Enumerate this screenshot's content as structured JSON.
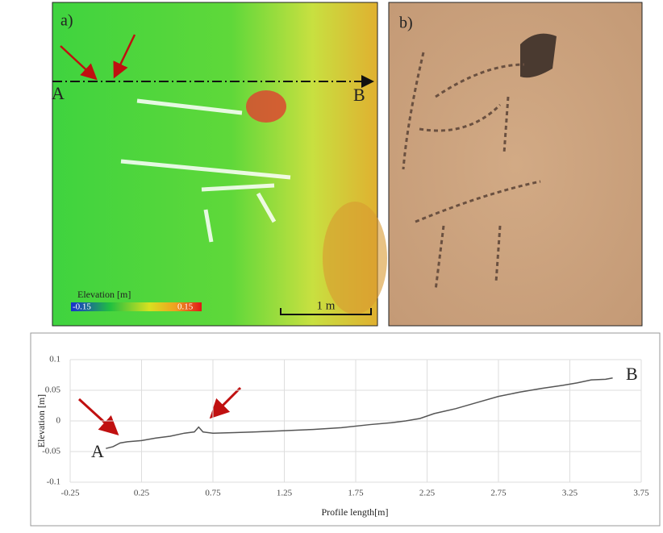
{
  "panel_a": {
    "label": "a)",
    "point_a": "A",
    "point_b": "B",
    "legend_title": "Elevation [m]",
    "legend_min": "-0.15",
    "legend_max": "0.15",
    "scale": "1 m"
  },
  "panel_b": {
    "label": "b)"
  },
  "chart_data": {
    "type": "line",
    "xlabel": "Profile length[m]",
    "ylabel": "Elevation [m]",
    "x": [
      0,
      0.05,
      0.1,
      0.15,
      0.25,
      0.35,
      0.45,
      0.55,
      0.62,
      0.65,
      0.68,
      0.75,
      0.9,
      1.05,
      1.25,
      1.45,
      1.65,
      1.85,
      2.0,
      2.1,
      2.2,
      2.3,
      2.45,
      2.6,
      2.75,
      2.9,
      3.05,
      3.2,
      3.3,
      3.4,
      3.5,
      3.55
    ],
    "series": [
      {
        "color": "#555555",
        "values": [
          -0.045,
          -0.042,
          -0.036,
          -0.034,
          -0.032,
          -0.028,
          -0.025,
          -0.02,
          -0.018,
          -0.01,
          -0.018,
          -0.02,
          -0.019,
          -0.018,
          -0.016,
          -0.014,
          -0.011,
          -0.006,
          -0.003,
          0,
          0.004,
          0.012,
          0.02,
          0.03,
          0.04,
          0.047,
          0.053,
          0.058,
          0.062,
          0.067,
          0.068,
          0.07
        ]
      }
    ],
    "xlim": [
      -0.25,
      3.75
    ],
    "xticks": [
      -0.25,
      0.25,
      0.75,
      1.25,
      1.75,
      2.25,
      2.75,
      3.25,
      3.75
    ],
    "ylim": [
      -0.1,
      0.1
    ],
    "yticks": [
      -0.1,
      -0.05,
      0,
      0.05,
      0.1
    ],
    "grid": true,
    "annotations": [
      "A",
      "B"
    ]
  }
}
